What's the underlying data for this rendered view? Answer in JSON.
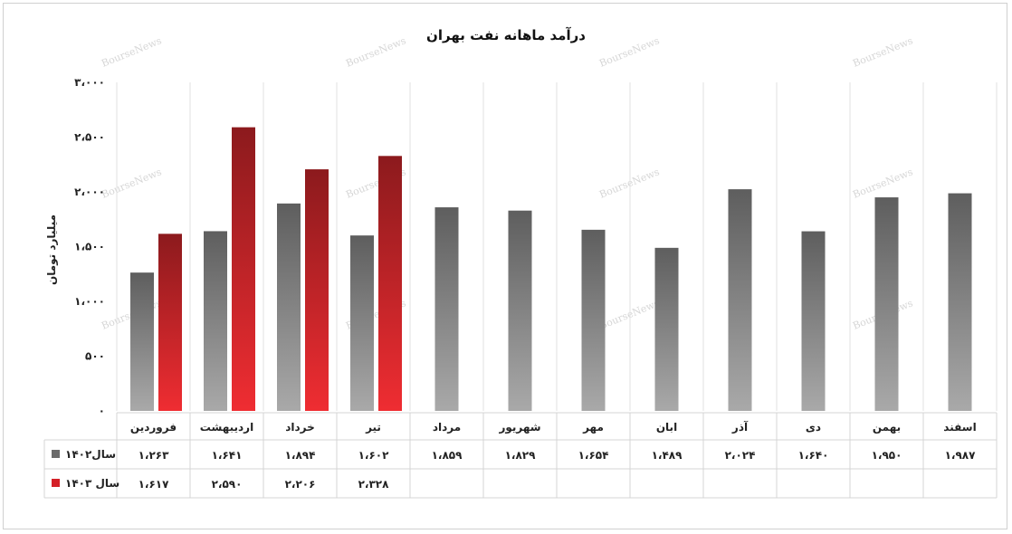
{
  "watermark": "BourseNews",
  "chart_data": {
    "type": "bar",
    "title": "درآمد ماهانه نفت بهران",
    "ylabel": "میلیارد تومان",
    "xlabel": "",
    "ylim": [
      0,
      3000
    ],
    "yticks": [
      0,
      500,
      1000,
      1500,
      2000,
      2500,
      3000
    ],
    "ytick_labels": [
      "۰",
      "۵۰۰",
      "۱،۰۰۰",
      "۱،۵۰۰",
      "۲،۰۰۰",
      "۲،۵۰۰",
      "۳،۰۰۰"
    ],
    "grid": "vertical",
    "legend": "data-table-left",
    "categories": [
      "فروردین",
      "اردیبهشت",
      "خرداد",
      "تیر",
      "مرداد",
      "شهریور",
      "مهر",
      "ابان",
      "آذر",
      "دی",
      "بهمن",
      "اسفند"
    ],
    "series": [
      {
        "name": "سال۱۴۰۲",
        "color": "#6b6b6b",
        "values": [
          1263,
          1641,
          1894,
          1602,
          1859,
          1829,
          1654,
          1489,
          2024,
          1640,
          1950,
          1987
        ],
        "labels": [
          "۱،۲۶۳",
          "۱،۶۴۱",
          "۱،۸۹۴",
          "۱،۶۰۲",
          "۱،۸۵۹",
          "۱،۸۲۹",
          "۱،۶۵۴",
          "۱،۴۸۹",
          "۲،۰۲۴",
          "۱،۶۴۰",
          "۱،۹۵۰",
          "۱،۹۸۷"
        ]
      },
      {
        "name": "سال ۱۴۰۳",
        "color": "#d42027",
        "values": [
          1617,
          2590,
          2206,
          2328,
          null,
          null,
          null,
          null,
          null,
          null,
          null,
          null
        ],
        "labels": [
          "۱،۶۱۷",
          "۲،۵۹۰",
          "۲،۲۰۶",
          "۲،۳۲۸",
          "",
          "",
          "",
          "",
          "",
          "",
          "",
          ""
        ]
      }
    ]
  }
}
